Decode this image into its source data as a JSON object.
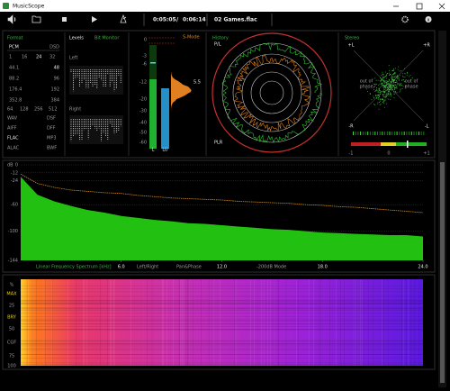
{
  "window": {
    "title": "MusicScope"
  },
  "toolbar": {
    "position": "0:05:05",
    "separator": "/",
    "duration": "0:06:14",
    "file": "02 Games.flac"
  },
  "format": {
    "title": "Format",
    "pcm": "PCM",
    "dsd": "DSD",
    "bits": [
      "1",
      "16",
      "24",
      "32"
    ],
    "rates": [
      "44.1",
      "48",
      "88.2",
      "96",
      "176.4",
      "192",
      "352.8",
      "384"
    ],
    "dsd_rates": [
      "64",
      "128",
      "256",
      "512"
    ],
    "files": [
      "WAV",
      "DSF",
      "AIFF",
      "DFF",
      "FLAC",
      "MP3",
      "ALAC",
      "BWF"
    ]
  },
  "levels": {
    "title": "Levels",
    "mode": "Bit Monitor",
    "left": "Left",
    "right": "Right"
  },
  "meter": {
    "mode": "S-Mode",
    "scale": [
      "0",
      "-3",
      "-6",
      "-12",
      "-20",
      "-30",
      "-40",
      "-50",
      "-60"
    ],
    "readout": "5.5",
    "bars": [
      "L",
      "LU"
    ]
  },
  "history": {
    "title": "History",
    "top": "P/L",
    "bottom": "PLR"
  },
  "stereo": {
    "title": "Stereo",
    "corners": [
      "+L",
      "+R",
      "-R",
      "-L"
    ],
    "phase": [
      "out of",
      "phase"
    ],
    "correlation": [
      "-1",
      "0",
      "+1"
    ]
  },
  "spectrum": {
    "type": "area",
    "y_unit": "dB",
    "ylim": [
      -144,
      0
    ],
    "yticks": [
      0,
      -12,
      -24,
      -60,
      -100,
      -144
    ],
    "xlim": [
      0,
      24
    ],
    "xticks": [
      {
        "value": 6,
        "label": "6.0"
      },
      {
        "value": 12,
        "label": "12.0"
      },
      {
        "value": 18,
        "label": "18.0"
      },
      {
        "value": 24,
        "label": "24.0"
      }
    ],
    "x": [
      0,
      1,
      2,
      3,
      4,
      5,
      6,
      7,
      8,
      9,
      10,
      11,
      12,
      13,
      14,
      15,
      16,
      17,
      18,
      19,
      20,
      21,
      22,
      23,
      24
    ],
    "series": [
      {
        "color": "#22c010",
        "values": [
          -18,
          -45,
          -55,
          -62,
          -68,
          -72,
          -77,
          -80,
          -83,
          -85,
          -88,
          -89,
          -91,
          -93,
          -95,
          -97,
          -98,
          -100,
          -102,
          -103,
          -104,
          -105,
          -106,
          -106,
          -108
        ]
      },
      {
        "color": "#d08a20",
        "values": [
          -14,
          -28,
          -34,
          -38,
          -40,
          -42,
          -43,
          -46,
          -48,
          -50,
          -51,
          -52,
          -53,
          -55,
          -56,
          -57,
          -58,
          -60,
          -61,
          -63,
          -64,
          -66,
          -68,
          -70,
          -72
        ]
      }
    ],
    "modes": [
      "Linear Frequency Spectrum [kHz]",
      "Left/Right",
      "Pan&Phase",
      "-200dB Mode"
    ]
  },
  "spectrogram": {
    "labels": [
      "%",
      "MAX",
      "25",
      "BRY",
      "50",
      "CGF",
      "75",
      "100"
    ]
  }
}
